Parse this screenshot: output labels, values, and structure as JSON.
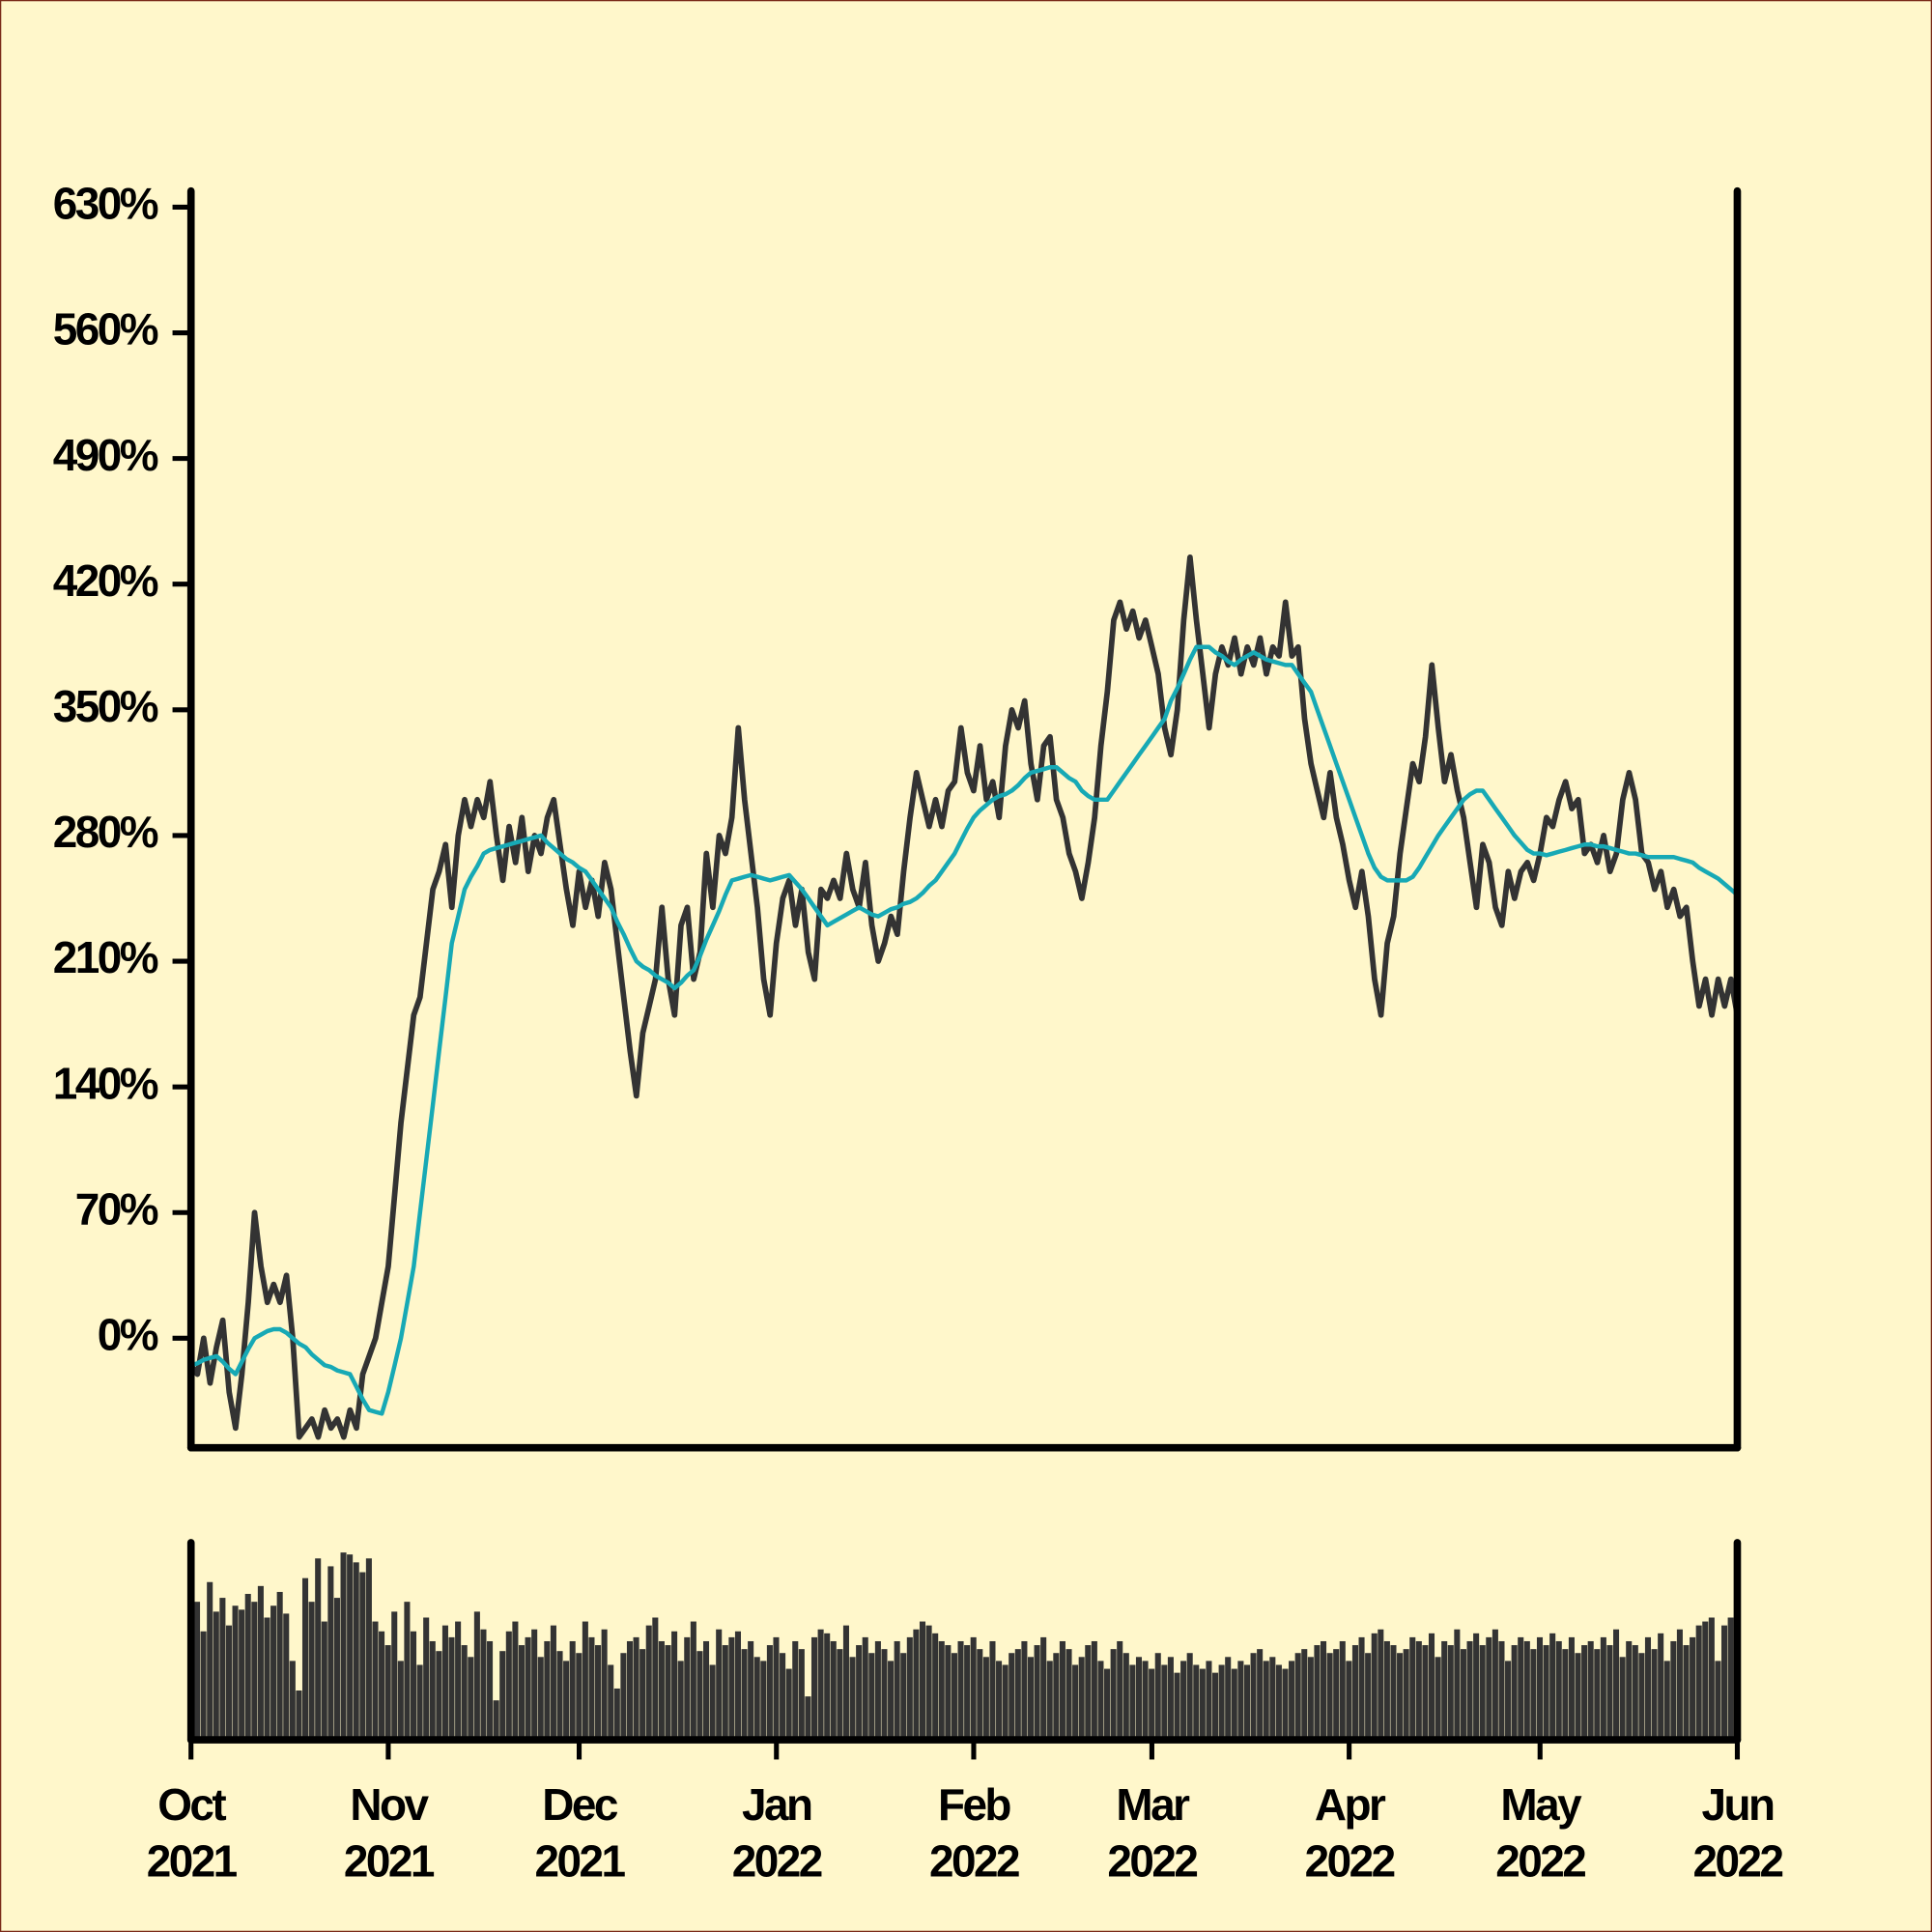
{
  "chart_data": [
    {
      "type": "line",
      "categories": [
        "Oct 2021",
        null,
        null,
        null,
        null,
        null,
        null,
        null,
        null,
        null,
        null,
        null,
        null,
        null,
        null,
        null,
        null,
        null,
        null,
        null,
        null,
        null,
        null,
        null,
        null,
        null,
        null,
        null,
        null,
        null,
        null,
        "Nov 2021",
        null,
        null,
        null,
        null,
        null,
        null,
        null,
        null,
        null,
        null,
        null,
        null,
        null,
        null,
        null,
        null,
        null,
        null,
        null,
        null,
        null,
        null,
        null,
        null,
        null,
        null,
        null,
        null,
        null,
        "Dec 2021",
        null,
        null,
        null,
        null,
        null,
        null,
        null,
        null,
        null,
        null,
        null,
        null,
        null,
        null,
        null,
        null,
        null,
        null,
        null,
        null,
        null,
        null,
        null,
        null,
        null,
        null,
        null,
        null,
        null,
        null,
        "Jan 2022",
        null,
        null,
        null,
        null,
        null,
        null,
        null,
        null,
        null,
        null,
        null,
        null,
        null,
        null,
        null,
        null,
        null,
        null,
        null,
        null,
        null,
        null,
        null,
        null,
        null,
        null,
        null,
        null,
        null,
        null,
        "Feb 2022",
        null,
        null,
        null,
        null,
        null,
        null,
        null,
        null,
        null,
        null,
        null,
        null,
        null,
        null,
        null,
        null,
        null,
        null,
        null,
        null,
        null,
        null,
        null,
        null,
        null,
        null,
        null,
        "Mar 2022",
        null,
        null,
        null,
        null,
        null,
        null,
        null,
        null,
        null,
        null,
        null,
        null,
        null,
        null,
        null,
        null,
        null,
        null,
        null,
        null,
        null,
        null,
        null,
        null,
        null,
        null,
        null,
        null,
        null,
        null,
        "Apr 2022",
        null,
        null,
        null,
        null,
        null,
        null,
        null,
        null,
        null,
        null,
        null,
        null,
        null,
        null,
        null,
        null,
        null,
        null,
        null,
        null,
        null,
        null,
        null,
        null,
        null,
        null,
        null,
        null,
        null,
        "May 2022",
        null,
        null,
        null,
        null,
        null,
        null,
        null,
        null,
        null,
        null,
        null,
        null,
        null,
        null,
        null,
        null,
        null,
        null,
        null,
        null,
        null,
        null,
        null,
        null,
        null,
        null,
        null,
        null,
        null,
        null,
        "Jun 2022"
      ],
      "series": [
        {
          "color": "#333333",
          "values": [
            -15,
            -20,
            0,
            -25,
            -5,
            10,
            -30,
            -50,
            -20,
            20,
            70,
            40,
            20,
            30,
            20,
            35,
            0,
            -55,
            -50,
            -45,
            -55,
            -40,
            -50,
            -45,
            -55,
            -40,
            -50,
            -20,
            -10,
            0,
            20,
            40,
            80,
            120,
            150,
            180,
            190,
            220,
            250,
            260,
            275,
            240,
            280,
            300,
            285,
            300,
            290,
            310,
            280,
            255,
            285,
            265,
            290,
            260,
            280,
            270,
            290,
            300,
            275,
            250,
            230,
            260,
            240,
            255,
            235,
            265,
            250,
            220,
            190,
            160,
            135,
            170,
            185,
            200,
            240,
            200,
            180,
            230,
            240,
            200,
            215,
            270,
            240,
            280,
            270,
            290,
            340,
            300,
            270,
            240,
            200,
            180,
            220,
            245,
            255,
            230,
            250,
            215,
            200,
            250,
            245,
            255,
            245,
            270,
            250,
            240,
            265,
            230,
            210,
            220,
            235,
            225,
            260,
            290,
            315,
            300,
            285,
            300,
            285,
            305,
            310,
            340,
            315,
            305,
            330,
            300,
            310,
            290,
            330,
            350,
            340,
            355,
            320,
            300,
            330,
            335,
            300,
            290,
            270,
            260,
            245,
            265,
            290,
            330,
            360,
            400,
            410,
            395,
            405,
            390,
            400,
            385,
            370,
            340,
            325,
            350,
            400,
            435,
            400,
            370,
            340,
            370,
            385,
            375,
            390,
            370,
            385,
            375,
            390,
            370,
            385,
            380,
            410,
            380,
            385,
            345,
            320,
            305,
            290,
            315,
            290,
            275,
            255,
            240,
            260,
            235,
            200,
            180,
            220,
            235,
            270,
            295,
            320,
            310,
            335,
            375,
            340,
            310,
            325,
            305,
            290,
            265,
            240,
            275,
            265,
            240,
            230,
            260,
            245,
            260,
            265,
            255,
            270,
            290,
            285,
            300,
            310,
            295,
            300,
            270,
            275,
            265,
            280,
            260,
            270,
            300,
            315,
            300,
            270,
            265,
            250,
            260,
            240,
            250,
            235,
            240,
            210,
            185,
            200,
            180,
            200,
            185,
            200,
            180
          ]
        },
        {
          "color": "#17a9b5",
          "values": [
            -15,
            -14,
            -12,
            -11,
            -10,
            -13,
            -17,
            -20,
            -13,
            -6,
            0,
            2,
            4,
            5,
            5,
            3,
            0,
            -3,
            -5,
            -9,
            -12,
            -15,
            -16,
            -18,
            -19,
            -20,
            -27,
            -34,
            -40,
            -41,
            -42,
            -30,
            -15,
            0,
            20,
            40,
            70,
            100,
            130,
            160,
            190,
            220,
            235,
            250,
            257,
            263,
            270,
            272,
            273,
            274,
            275,
            276,
            277,
            278,
            279,
            280,
            276,
            273,
            270,
            267,
            265,
            262,
            260,
            255,
            250,
            245,
            240,
            232,
            225,
            217,
            210,
            207,
            205,
            202,
            200,
            198,
            195,
            198,
            202,
            205,
            213,
            222,
            230,
            238,
            247,
            255,
            256,
            257,
            258,
            257,
            256,
            255,
            256,
            257,
            258,
            254,
            250,
            245,
            240,
            235,
            230,
            232,
            234,
            236,
            238,
            240,
            238,
            236,
            235,
            237,
            239,
            240,
            242,
            243,
            245,
            248,
            252,
            255,
            260,
            265,
            270,
            277,
            284,
            290,
            294,
            297,
            300,
            302,
            303,
            305,
            308,
            312,
            315,
            316,
            317,
            318,
            318,
            315,
            312,
            310,
            305,
            302,
            300,
            300,
            300,
            305,
            310,
            315,
            320,
            325,
            330,
            335,
            340,
            345,
            355,
            362,
            370,
            378,
            385,
            385,
            385,
            382,
            380,
            377,
            375,
            378,
            380,
            382,
            380,
            378,
            377,
            376,
            375,
            375,
            370,
            365,
            360,
            350,
            340,
            330,
            320,
            310,
            300,
            290,
            280,
            270,
            262,
            257,
            255,
            255,
            255,
            255,
            257,
            262,
            268,
            274,
            280,
            285,
            290,
            295,
            300,
            303,
            305,
            305,
            300,
            295,
            290,
            285,
            280,
            276,
            272,
            270,
            270,
            269,
            270,
            271,
            272,
            273,
            274,
            275,
            275,
            274,
            274,
            273,
            272,
            271,
            270,
            270,
            269,
            268,
            268,
            268,
            268,
            268,
            267,
            266,
            265,
            262,
            260,
            258,
            256,
            253,
            250,
            247
          ]
        }
      ],
      "ylim": [
        -61,
        639
      ],
      "yticks": [
        {
          "value": 0,
          "label": "0%"
        },
        {
          "value": 70,
          "label": "70%"
        },
        {
          "value": 140,
          "label": "140%"
        },
        {
          "value": 210,
          "label": "210%"
        },
        {
          "value": 280,
          "label": "280%"
        },
        {
          "value": 350,
          "label": "350%"
        },
        {
          "value": 420,
          "label": "420%"
        },
        {
          "value": 490,
          "label": "490%"
        },
        {
          "value": 560,
          "label": "560%"
        },
        {
          "value": 630,
          "label": "630%"
        }
      ]
    },
    {
      "type": "bar",
      "color": "#333333",
      "ylim": [
        0,
        100
      ],
      "values": [
        60,
        70,
        55,
        80,
        65,
        72,
        58,
        68,
        66,
        74,
        70,
        78,
        62,
        68,
        75,
        64,
        40,
        25,
        82,
        70,
        92,
        60,
        88,
        72,
        95,
        94,
        90,
        85,
        92,
        60,
        55,
        48,
        65,
        40,
        70,
        55,
        38,
        62,
        50,
        45,
        58,
        52,
        60,
        48,
        42,
        65,
        56,
        50,
        20,
        45,
        55,
        60,
        48,
        52,
        56,
        42,
        50,
        58,
        45,
        40,
        50,
        44,
        60,
        52,
        48,
        56,
        38,
        26,
        44,
        50,
        52,
        46,
        58,
        62,
        50,
        48,
        55,
        40,
        52,
        60,
        45,
        50,
        38,
        56,
        48,
        52,
        55,
        46,
        50,
        42,
        40,
        48,
        52,
        44,
        36,
        50,
        46,
        22,
        52,
        56,
        54,
        50,
        46,
        58,
        42,
        48,
        52,
        44,
        50,
        46,
        40,
        50,
        44,
        52,
        56,
        60,
        58,
        54,
        50,
        48,
        44,
        50,
        48,
        52,
        46,
        42,
        50,
        40,
        38,
        44,
        46,
        50,
        42,
        48,
        52,
        40,
        44,
        50,
        46,
        38,
        42,
        48,
        50,
        40,
        36,
        46,
        50,
        44,
        38,
        42,
        40,
        36,
        44,
        38,
        42,
        34,
        40,
        44,
        38,
        36,
        40,
        34,
        38,
        42,
        36,
        40,
        38,
        44,
        46,
        40,
        42,
        38,
        36,
        40,
        44,
        46,
        42,
        48,
        50,
        44,
        46,
        50,
        40,
        48,
        52,
        44,
        54,
        56,
        50,
        48,
        44,
        46,
        52,
        50,
        48,
        54,
        42,
        50,
        48,
        56,
        46,
        50,
        54,
        48,
        52,
        56,
        50,
        40,
        48,
        52,
        50,
        46,
        52,
        48,
        54,
        50,
        46,
        52,
        44,
        48,
        50,
        46,
        52,
        48,
        56,
        42,
        50,
        48,
        44,
        52,
        46,
        54,
        40,
        50,
        56,
        48,
        52,
        58,
        60,
        62,
        40,
        58,
        62,
        64
      ]
    }
  ]
}
